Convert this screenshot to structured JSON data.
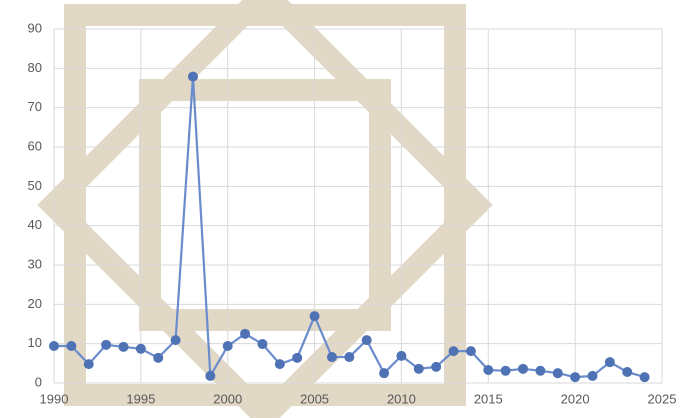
{
  "chart_data": {
    "type": "line",
    "x": [
      1990,
      1991,
      1992,
      1993,
      1994,
      1995,
      1996,
      1997,
      1998,
      1999,
      2000,
      2001,
      2002,
      2003,
      2004,
      2005,
      2006,
      2007,
      2008,
      2009,
      2010,
      2011,
      2012,
      2013,
      2014,
      2015,
      2016,
      2017,
      2018,
      2019,
      2020,
      2021,
      2022,
      2023,
      2024
    ],
    "values": [
      9.4,
      9.4,
      4.8,
      9.7,
      9.2,
      8.7,
      6.4,
      10.9,
      77.9,
      1.8,
      9.4,
      12.5,
      9.9,
      4.8,
      6.4,
      17.0,
      6.6,
      6.6,
      10.9,
      2.5,
      6.9,
      3.6,
      4.1,
      8.1,
      8.1,
      3.3,
      3.1,
      3.6,
      3.1,
      2.5,
      1.5,
      1.8,
      5.3,
      2.8,
      1.5
    ],
    "color": "#6a8ccc",
    "marker_color": "#4f72b5",
    "xlim": [
      1990,
      2025
    ],
    "xticks": [
      1990,
      1995,
      2000,
      2005,
      2010,
      2015,
      2020,
      2025
    ],
    "ylim": [
      0,
      90
    ],
    "yticks": [
      0,
      10,
      20,
      30,
      40,
      50,
      60,
      70,
      80,
      90
    ],
    "grid": true
  }
}
